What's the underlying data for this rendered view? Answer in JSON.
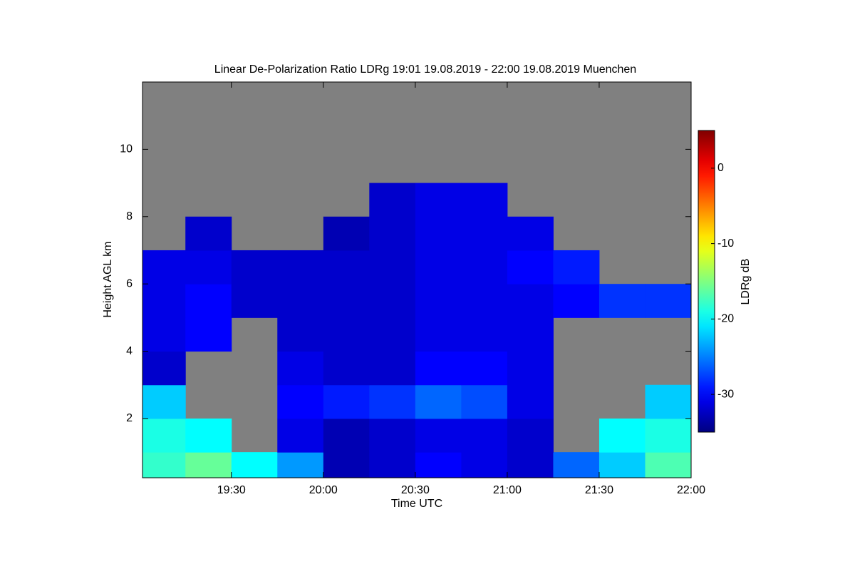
{
  "chart_data": {
    "type": "heatmap",
    "title": "Linear De-Polarization Ratio LDRg   19:01 19.08.2019 - 22:00 19.08.2019 Muenchen",
    "xlabel": "Time UTC",
    "ylabel": "Height AGL km",
    "colorbar_label": "LDRg dB",
    "x": [
      19.125,
      19.375,
      19.625,
      19.875,
      20.125,
      20.375,
      20.625,
      20.875,
      21.125,
      21.375,
      21.625,
      21.875
    ],
    "y": [
      0.5,
      1.5,
      2.5,
      3.5,
      4.5,
      5.5,
      6.5,
      7.5,
      8.5,
      9.5,
      10.5,
      11.5
    ],
    "z": [
      [
        -18,
        -16,
        -20,
        -24,
        -33,
        -32,
        -30,
        -31,
        -32,
        -26,
        -22,
        -17
      ],
      [
        -19,
        -20,
        null,
        -31,
        -33,
        -32,
        -31,
        -31,
        -32,
        null,
        -20,
        -19
      ],
      [
        -22,
        null,
        null,
        -30,
        -29,
        -28,
        -26,
        -27,
        -31,
        null,
        null,
        -22
      ],
      [
        -32,
        null,
        null,
        -31,
        -32,
        -32,
        -30,
        -30,
        -31,
        null,
        null,
        null
      ],
      [
        -31,
        -30,
        null,
        -32,
        -32,
        -32,
        -31,
        -31,
        -31,
        null,
        null,
        null
      ],
      [
        -31,
        -30,
        -32,
        -32,
        -32,
        -32,
        -31,
        -31,
        -31,
        -30,
        -28,
        -28
      ],
      [
        -31,
        -31,
        -32,
        -32,
        -32,
        -32,
        -31,
        -31,
        -30,
        -29,
        null,
        null
      ],
      [
        null,
        -32,
        null,
        null,
        -33,
        -32,
        -31,
        -31,
        -31,
        null,
        null,
        null
      ],
      [
        null,
        null,
        null,
        null,
        null,
        -32,
        -31,
        -31,
        null,
        null,
        null,
        null
      ],
      [
        null,
        null,
        null,
        null,
        null,
        null,
        null,
        null,
        null,
        null,
        null,
        null
      ],
      [
        null,
        null,
        null,
        null,
        null,
        null,
        null,
        null,
        null,
        null,
        null,
        null
      ],
      [
        null,
        null,
        null,
        null,
        null,
        null,
        null,
        null,
        null,
        null,
        null,
        null
      ]
    ],
    "xlim": [
      19.0167,
      22.0
    ],
    "xticks": [
      {
        "value": 19.5,
        "label": "19:30"
      },
      {
        "value": 20.0,
        "label": "20:00"
      },
      {
        "value": 20.5,
        "label": "20:30"
      },
      {
        "value": 21.0,
        "label": "21:00"
      },
      {
        "value": 21.5,
        "label": "21:30"
      },
      {
        "value": 22.0,
        "label": "22:00"
      }
    ],
    "ylim": [
      0.24,
      12
    ],
    "yticks": [
      2,
      4,
      6,
      8,
      10
    ],
    "clim": [
      -35,
      5
    ],
    "cticks": [
      -30,
      -20,
      -10,
      0
    ],
    "colormap": "jet",
    "background": "#808080"
  }
}
